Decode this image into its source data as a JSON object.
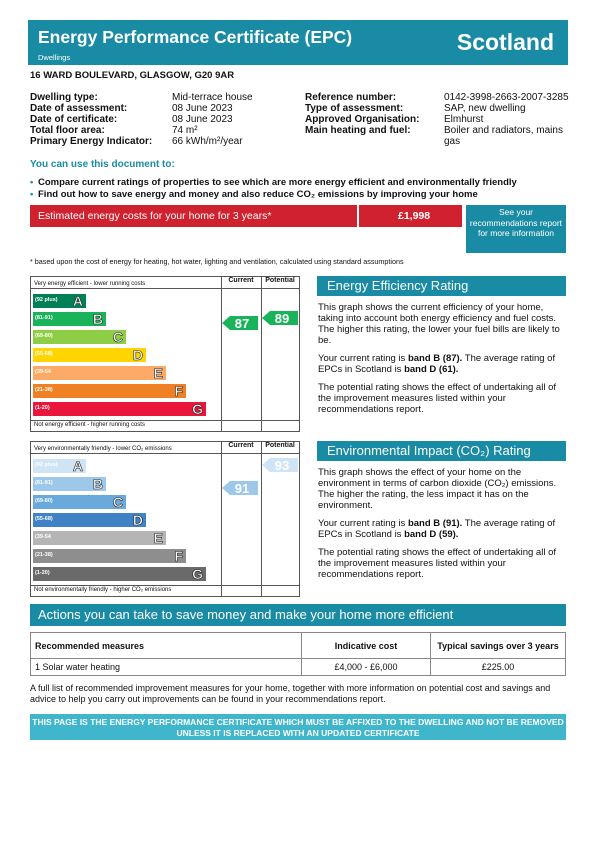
{
  "header": {
    "title": "Energy Performance Certificate (EPC)",
    "subtitle": "Dwellings",
    "country": "Scotland"
  },
  "address": "16 WARD BOULEVARD, GLASGOW, G20 9AR",
  "details_left": [
    {
      "label": "Dwelling type:",
      "value": "Mid-terrace house"
    },
    {
      "label": "Date of assessment:",
      "value": "08 June 2023"
    },
    {
      "label": "Date of certificate:",
      "value": "08 June 2023"
    },
    {
      "label": "Total floor area:",
      "value": "74 m²"
    },
    {
      "label": "Primary Energy Indicator:",
      "value": "66 kWh/m²/year"
    }
  ],
  "details_right": [
    {
      "label": "Reference number:",
      "value": "0142-3998-2663-2007-3285"
    },
    {
      "label": "Type of assessment:",
      "value": "SAP, new dwelling"
    },
    {
      "label": "Approved Organisation:",
      "value": "Elmhurst"
    },
    {
      "label": "Main heating and fuel:",
      "value": "Boiler and radiators, mains"
    },
    {
      "label": "",
      "value": "gas"
    }
  ],
  "use_heading": "You can use this document to:",
  "bullets": [
    "Compare current ratings of properties to see which are more energy efficient and environmentally friendly",
    "Find out how to save energy and money and also reduce CO₂ emissions by improving your home"
  ],
  "cost": {
    "label": "Estimated energy costs for your home for 3 years*",
    "value": "£1,998",
    "see_rec": "See your recommendations report for more information"
  },
  "cost_note": "* based upon the cost of energy for heating, hot water, lighting and ventilation, calculated using standard assumptions",
  "energy_graph": {
    "top_text": "Very energy efficient - lower running costs",
    "bottom_text": "Not energy efficient - higher running costs",
    "col_current": "Current",
    "col_potential": "Potential",
    "current": "87",
    "potential": "89",
    "bands": [
      {
        "range": "(92 plus)",
        "letter": "A",
        "color": "#008054"
      },
      {
        "range": "(81-91)",
        "letter": "B",
        "color": "#19b459"
      },
      {
        "range": "(69-80)",
        "letter": "C",
        "color": "#8dce46"
      },
      {
        "range": "(55-68)",
        "letter": "D",
        "color": "#ffd500"
      },
      {
        "range": "(39-54",
        "letter": "E",
        "color": "#fcaa65"
      },
      {
        "range": "(21-38)",
        "letter": "F",
        "color": "#ef8023"
      },
      {
        "range": "(1-20)",
        "letter": "G",
        "color": "#e9153b"
      }
    ]
  },
  "co2_graph": {
    "top_text": "Very environmentally friendly - lower CO₂ emissions",
    "bottom_text": "Not environmentally friendly - higher CO₂ emissions",
    "col_current": "Current",
    "col_potential": "Potential",
    "current": "91",
    "potential": "93",
    "bands": [
      {
        "range": "(92 plus)",
        "letter": "A",
        "color": "#cfe4f5"
      },
      {
        "range": "(81-91)",
        "letter": "B",
        "color": "#9dc8ea"
      },
      {
        "range": "(69-80)",
        "letter": "C",
        "color": "#6aa9dc"
      },
      {
        "range": "(55-68)",
        "letter": "D",
        "color": "#3f82c6"
      },
      {
        "range": "(39-54",
        "letter": "E",
        "color": "#b5b5b5"
      },
      {
        "range": "(21-38)",
        "letter": "F",
        "color": "#8e8e8e"
      },
      {
        "range": "(1-20)",
        "letter": "G",
        "color": "#6a6a6a"
      }
    ]
  },
  "eer": {
    "title": "Energy Efficiency Rating",
    "p1": "This graph shows the current efficiency of your home, taking into account both energy efficiency and fuel costs. The higher this rating, the lower your fuel bills are likely to be.",
    "p2a": "Your current rating is ",
    "p2b": "band B (87).",
    "p2c": " The average rating of EPCs in Scotland is ",
    "p2d": "band D (61).",
    "p3": "The potential rating shows the effect of undertaking all of the improvement measures listed within your recommendations report."
  },
  "eir": {
    "title": "Environmental Impact (CO₂) Rating",
    "p1": "This graph shows the effect of your home on the environment in terms of carbon dioxide (CO₂) emissions. The higher the rating, the less impact it has on the environment.",
    "p2a": "Your current rating is ",
    "p2b": "band B (91).",
    "p2c": " The average rating of EPCs in Scotland is ",
    "p2d": "band D (59).",
    "p3": "The potential rating shows the effect of undertaking all of the improvement measures listed within your recommendations report."
  },
  "actions": {
    "title": "Actions you can take to save money and make your home more efficient",
    "headers": [
      "Recommended measures",
      "Indicative cost",
      "Typical savings over 3 years"
    ],
    "rows": [
      [
        "1 Solar water heating",
        "£4,000 - £6,000",
        "£225.00"
      ]
    ]
  },
  "full_list_note": "A full list of recommended improvement measures for your home, together with more information on potential cost and savings and advice to help you carry out improvements can be found in your recommendations report.",
  "footer": "THIS PAGE IS THE ENERGY PERFORMANCE CERTIFICATE WHICH MUST BE AFFIXED TO THE DWELLING AND NOT BE REMOVED UNLESS IT IS REPLACED WITH AN UPDATED CERTIFICATE"
}
